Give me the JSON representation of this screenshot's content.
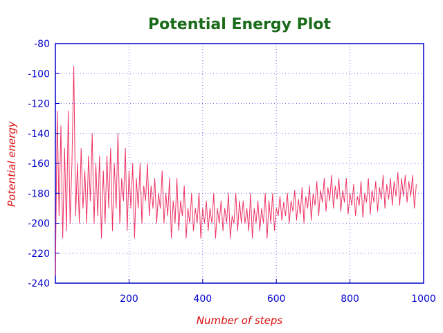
{
  "chart_data": {
    "type": "line",
    "title": "Potential Energy Plot",
    "xlabel": "Number of steps",
    "ylabel": "Potential energy",
    "xlim": [
      0,
      1000
    ],
    "ylim": [
      -240,
      -80
    ],
    "x_ticks": [
      200,
      400,
      600,
      800,
      1000
    ],
    "y_ticks": [
      -80,
      -100,
      -120,
      -140,
      -160,
      -180,
      -200,
      -220,
      -240
    ],
    "grid": true,
    "legend": "none",
    "series": [
      {
        "step": 5,
        "values": [
          -235,
          -125,
          -195,
          -135,
          -210,
          -150,
          -205,
          -125,
          -200,
          -160,
          -95,
          -195,
          -160,
          -200,
          -150,
          -190,
          -165,
          -200,
          -155,
          -185,
          -140,
          -200,
          -160,
          -195,
          -155,
          -210,
          -165,
          -200,
          -155,
          -190,
          -150,
          -205,
          -160,
          -190,
          -140,
          -200,
          -170,
          -185,
          -150,
          -205,
          -165,
          -190,
          -160,
          -210,
          -170,
          -190,
          -160,
          -200,
          -175,
          -185,
          -160,
          -195,
          -175,
          -190,
          -170,
          -200,
          -180,
          -190,
          -165,
          -200,
          -180,
          -195,
          -170,
          -210,
          -185,
          -200,
          -170,
          -205,
          -185,
          -195,
          -175,
          -210,
          -190,
          -200,
          -180,
          -205,
          -190,
          -200,
          -180,
          -210,
          -190,
          -200,
          -185,
          -205,
          -190,
          -200,
          -180,
          -210,
          -190,
          -200,
          -185,
          -205,
          -190,
          -200,
          -180,
          -210,
          -195,
          -200,
          -180,
          -205,
          -185,
          -200,
          -185,
          -200,
          -190,
          -205,
          -180,
          -210,
          -190,
          -200,
          -185,
          -205,
          -190,
          -200,
          -180,
          -210,
          -185,
          -200,
          -180,
          -205,
          -190,
          -195,
          -182,
          -198,
          -186,
          -195,
          -180,
          -200,
          -185,
          -192,
          -178,
          -198,
          -184,
          -194,
          -176,
          -200,
          -182,
          -190,
          -175,
          -198,
          -180,
          -188,
          -172,
          -195,
          -178,
          -186,
          -170,
          -192,
          -176,
          -185,
          -168,
          -190,
          -175,
          -184,
          -170,
          -192,
          -178,
          -186,
          -170,
          -194,
          -180,
          -188,
          -174,
          -195,
          -182,
          -188,
          -172,
          -196,
          -180,
          -186,
          -170,
          -194,
          -178,
          -186,
          -172,
          -192,
          -176,
          -184,
          -168,
          -190,
          -174,
          -184,
          -170,
          -188,
          -172,
          -182,
          -166,
          -188,
          -170,
          -182,
          -168,
          -186,
          -172,
          -182,
          -168,
          -190,
          -174
        ]
      }
    ]
  }
}
